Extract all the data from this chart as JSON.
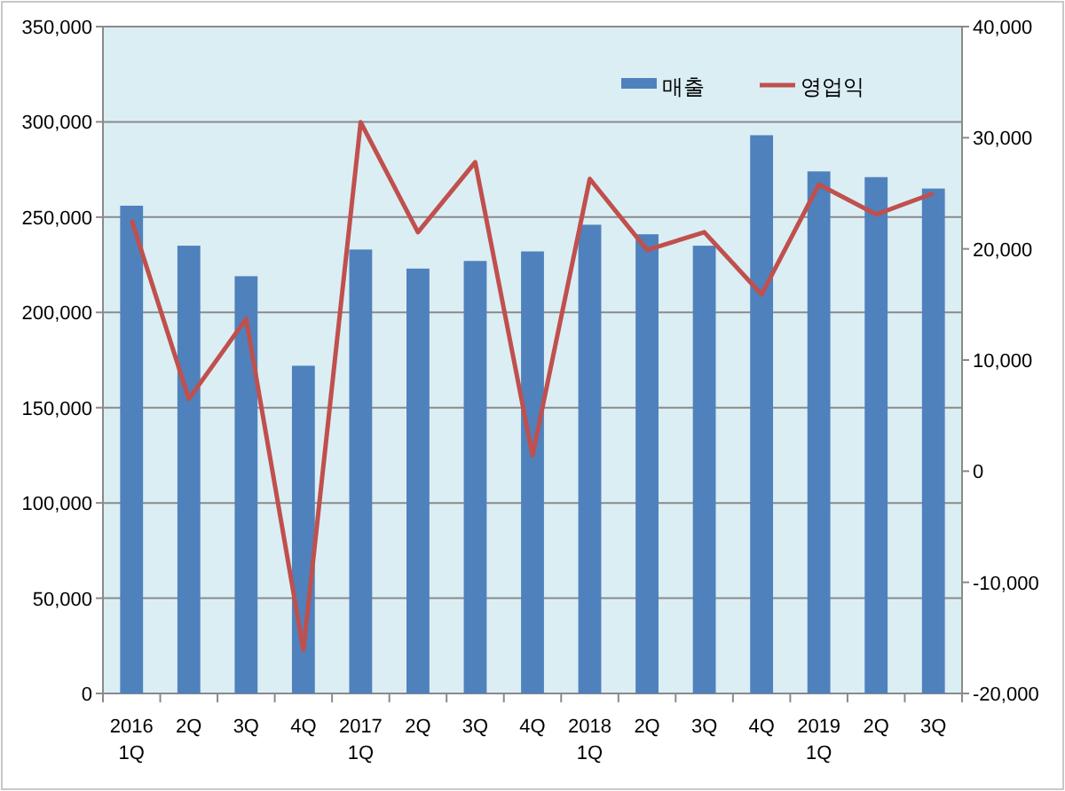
{
  "chart_data": {
    "type": "bar",
    "categories": [
      "2016\n1Q",
      "2Q",
      "3Q",
      "4Q",
      "2017\n1Q",
      "2Q",
      "3Q",
      "4Q",
      "2018\n1Q",
      "2Q",
      "3Q",
      "4Q",
      "2019\n1Q",
      "2Q",
      "3Q"
    ],
    "series": [
      {
        "name": "매출",
        "color": "#4f81bd",
        "values": [
          256000,
          235000,
          219000,
          172000,
          233000,
          223000,
          227000,
          232000,
          246000,
          241000,
          235000,
          293000,
          274000,
          271000,
          265000
        ]
      },
      {
        "name": "영업익",
        "type": "line",
        "axis": "y2",
        "color": "#c0504d",
        "values": [
          22600,
          6500,
          13700,
          -16100,
          31400,
          21500,
          27800,
          1400,
          26300,
          19900,
          21500,
          15900,
          25800,
          23100,
          25000
        ]
      }
    ],
    "ylim": [
      0,
      350000
    ],
    "yticks": [
      {
        "value": 0,
        "label": "0"
      },
      {
        "value": 50000,
        "label": "50,000"
      },
      {
        "value": 100000,
        "label": "100,000"
      },
      {
        "value": 150000,
        "label": "150,000"
      },
      {
        "value": 200000,
        "label": "200,000"
      },
      {
        "value": 250000,
        "label": "250,000"
      },
      {
        "value": 300000,
        "label": "300,000"
      },
      {
        "value": 350000,
        "label": "350,000"
      }
    ],
    "y2lim": [
      -20000,
      40000
    ],
    "y2ticks": [
      {
        "value": -20000,
        "label": "-20,000"
      },
      {
        "value": -10000,
        "label": "-10,000"
      },
      {
        "value": 0,
        "label": "0"
      },
      {
        "value": 10000,
        "label": "10,000"
      },
      {
        "value": 20000,
        "label": "20,000"
      },
      {
        "value": 30000,
        "label": "30,000"
      },
      {
        "value": 40000,
        "label": "40,000"
      }
    ],
    "grid": "y",
    "legend": "top right",
    "marker": "none",
    "line_style": "solid"
  }
}
